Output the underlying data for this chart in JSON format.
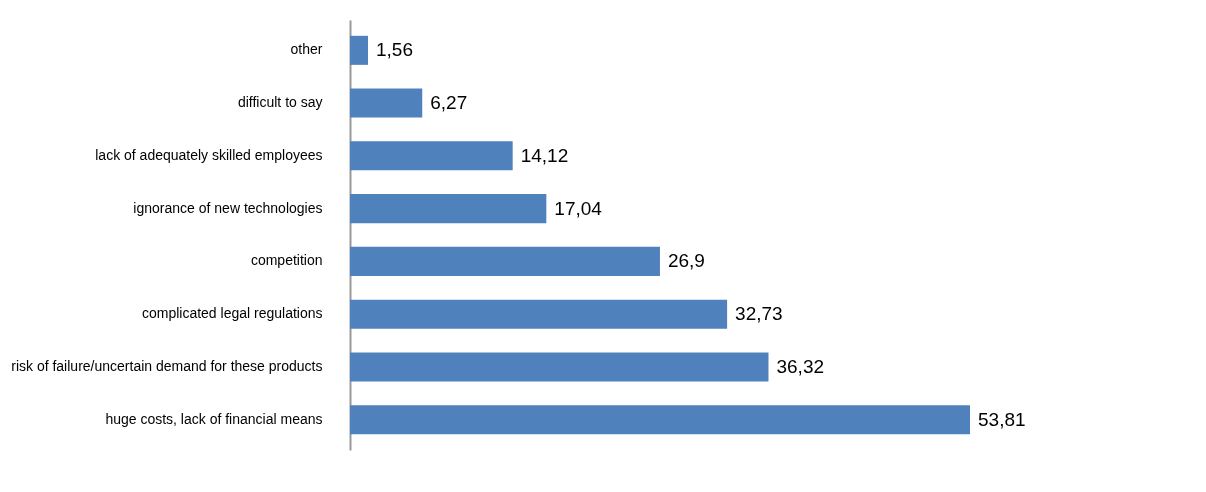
{
  "chart_data": {
    "type": "bar",
    "orientation": "horizontal",
    "categories": [
      "other",
      "difficult to say",
      "lack of adequately skilled employees",
      "ignorance of new technologies",
      "competition",
      "complicated legal regulations",
      "risk of failure/uncertain demand for these products",
      "huge costs, lack of financial means"
    ],
    "values": [
      1.56,
      6.27,
      14.12,
      17.04,
      26.9,
      32.73,
      36.32,
      53.81
    ],
    "value_labels": [
      "1,56",
      "6,27",
      "14,12",
      "17,04",
      "26,9",
      "32,73",
      "36,32",
      "53,81"
    ],
    "color": "#4f81bd"
  }
}
